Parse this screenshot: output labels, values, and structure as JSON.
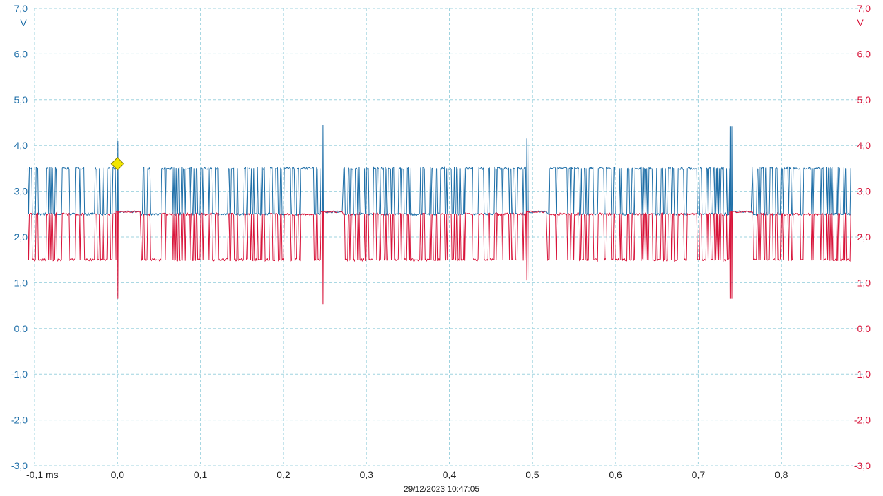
{
  "colors": {
    "ch_a": "#1f6fa8",
    "ch_b": "#d8143a",
    "grid": "#9fd3df",
    "trigger": "#f2e600"
  },
  "chart_data": {
    "type": "line",
    "x_unit": "ms",
    "xlim": [
      -0.1,
      0.9
    ],
    "ylim": [
      -3.0,
      7.0
    ],
    "x_ticks": [
      "-0,1 ms",
      "0,0",
      "0,1",
      "0,2",
      "0,3",
      "0,4",
      "0,5",
      "0,6",
      "0,7",
      "0,8"
    ],
    "x_tick_values": [
      -0.1,
      0.0,
      0.1,
      0.2,
      0.3,
      0.4,
      0.5,
      0.6,
      0.7,
      0.8
    ],
    "y_ticks_left": [
      "7,0",
      "6,0",
      "5,0",
      "4,0",
      "3,0",
      "2,0",
      "1,0",
      "0,0",
      "-1,0",
      "-2,0",
      "-3,0"
    ],
    "y_ticks_right": [
      "7,0",
      "6,0",
      "5,0",
      "4,0",
      "3,0",
      "2,0",
      "1,0",
      "0,0",
      "-1,0",
      "-2,0",
      "-3,0"
    ],
    "y_tick_values": [
      7,
      6,
      5,
      4,
      3,
      2,
      1,
      0,
      -1,
      -2,
      -3
    ],
    "y_unit_left": "V",
    "y_unit_right": "V",
    "grid": true,
    "timestamp": "29/12/2023 10:47:05",
    "trigger": {
      "x": 0.0,
      "y": 3.6
    },
    "series": [
      {
        "color": "#1f6fa8",
        "high": 3.5,
        "low": 2.5,
        "idle": 2.55,
        "bursts": [
          [
            -0.108,
            -0.002
          ],
          [
            0.028,
            0.245
          ],
          [
            0.272,
            0.492
          ],
          [
            0.518,
            0.738
          ],
          [
            0.765,
            0.884
          ]
        ],
        "spikes": [
          [
            0.0,
            4.1
          ],
          [
            0.247,
            4.45
          ],
          [
            0.493,
            4.15
          ],
          [
            0.739,
            4.42
          ]
        ]
      },
      {
        "color": "#d8143a",
        "high": 2.5,
        "low": 1.5,
        "idle": 2.55,
        "bursts": [
          [
            -0.108,
            -0.002
          ],
          [
            0.028,
            0.245
          ],
          [
            0.272,
            0.492
          ],
          [
            0.518,
            0.738
          ],
          [
            0.765,
            0.884
          ]
        ],
        "spikes": [
          [
            0.0,
            0.65
          ],
          [
            0.247,
            0.52
          ],
          [
            0.493,
            1.05
          ],
          [
            0.739,
            0.65
          ]
        ]
      }
    ]
  }
}
